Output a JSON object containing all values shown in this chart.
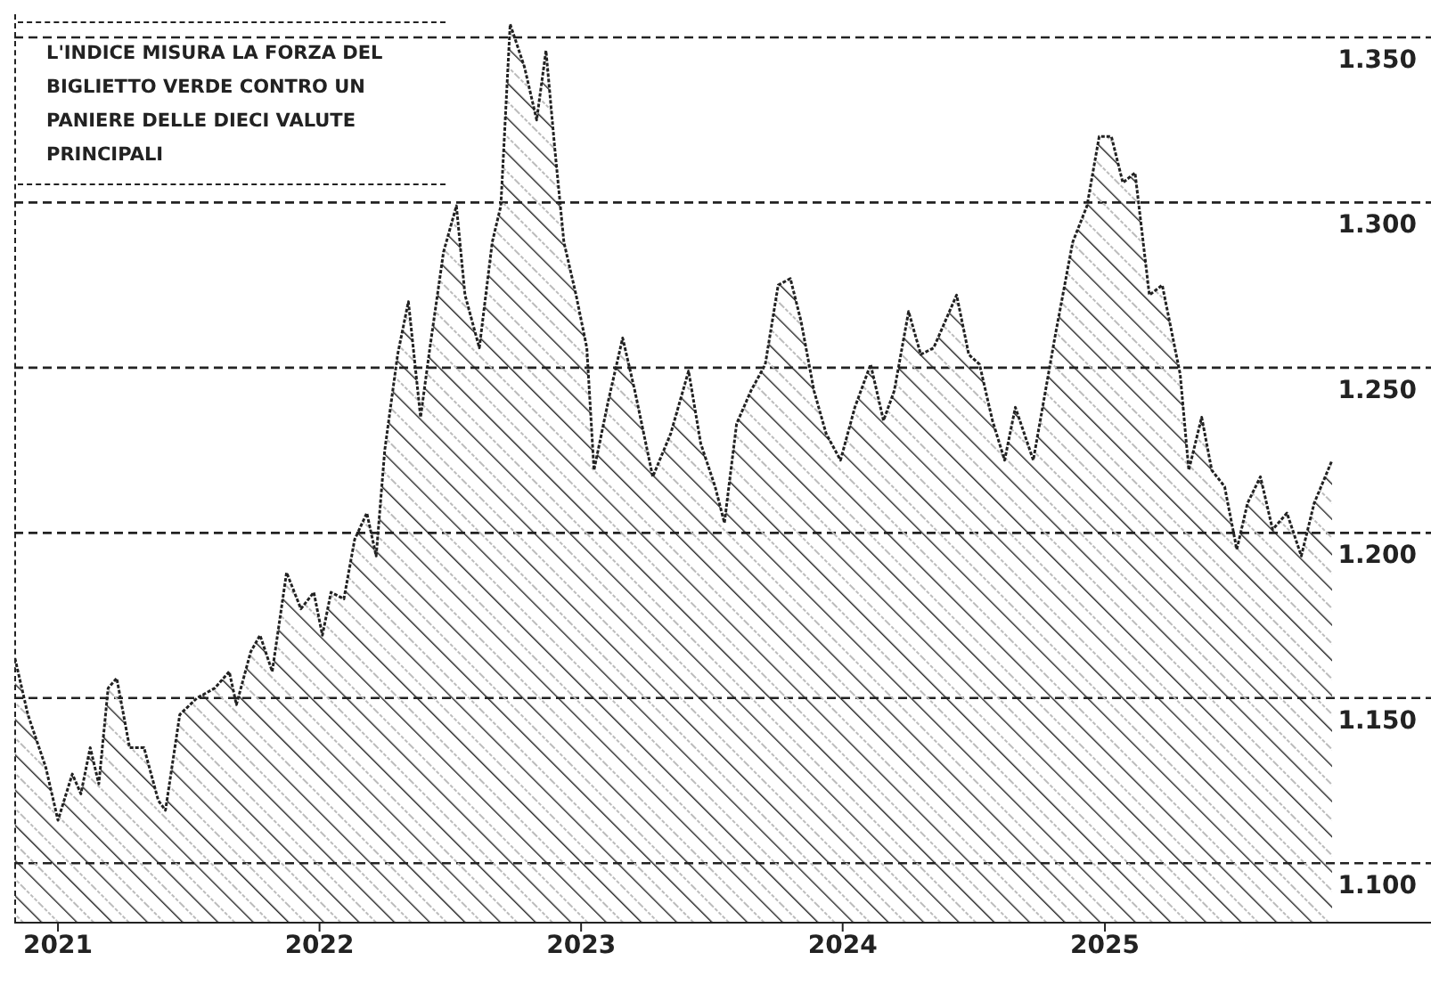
{
  "chart_data": {
    "type": "area",
    "annotations": [
      "L'INDICE MISURA LA FORZA DEL BIGLIETTO VERDE CONTRO UN PANIERE DELLE DIECI VALUTE PRINCIPALI"
    ],
    "x": [
      "2020-11-02",
      "2020-11-20",
      "2020-12-15",
      "2021-01-01",
      "2021-01-21",
      "2021-02-02",
      "2021-02-15",
      "2021-02-27",
      "2021-03-12",
      "2021-03-24",
      "2021-04-11",
      "2021-05-01",
      "2021-05-21",
      "2021-05-31",
      "2021-06-20",
      "2021-07-14",
      "2021-08-08",
      "2021-08-28",
      "2021-09-07",
      "2021-09-27",
      "2021-10-10",
      "2021-10-27",
      "2021-11-16",
      "2021-12-06",
      "2021-12-24",
      "2022-01-05",
      "2022-01-17",
      "2022-02-04",
      "2022-02-19",
      "2022-03-08",
      "2022-03-21",
      "2022-04-02",
      "2022-04-20",
      "2022-05-05",
      "2022-05-22",
      "2022-06-04",
      "2022-06-23",
      "2022-07-11",
      "2022-07-23",
      "2022-08-12",
      "2022-08-30",
      "2022-09-11",
      "2022-09-24",
      "2022-10-14",
      "2022-10-31",
      "2022-11-13",
      "2022-11-25",
      "2022-12-08",
      "2022-12-25",
      "2023-01-09",
      "2023-01-19",
      "2023-02-08",
      "2023-02-28",
      "2023-03-17",
      "2023-04-11",
      "2023-05-06",
      "2023-05-31",
      "2023-06-17",
      "2023-07-07",
      "2023-07-20",
      "2023-08-06",
      "2023-08-26",
      "2023-09-15",
      "2023-10-03",
      "2023-10-20",
      "2023-11-04",
      "2023-11-22",
      "2023-12-09",
      "2023-12-29",
      "2024-01-18",
      "2024-02-09",
      "2024-02-27",
      "2024-03-13",
      "2024-04-02",
      "2024-04-19",
      "2024-05-07",
      "2024-06-08",
      "2024-06-25",
      "2024-07-10",
      "2024-07-28",
      "2024-08-14",
      "2024-08-29",
      "2024-09-23",
      "2024-10-23",
      "2024-11-17",
      "2024-12-07",
      "2024-12-24",
      "2025-01-10",
      "2025-01-26",
      "2025-02-12",
      "2025-03-04",
      "2025-03-22",
      "2025-04-16",
      "2025-04-28",
      "2025-05-16",
      "2025-05-30",
      "2025-06-17",
      "2025-07-04",
      "2025-07-19",
      "2025-08-06",
      "2025-08-23",
      "2025-09-12",
      "2025-10-02",
      "2025-10-20",
      "2025-11-14"
    ],
    "series": [
      {
        "color": "#222222",
        "values": [
          1.162,
          1.145,
          1.129,
          1.113,
          1.127,
          1.121,
          1.135,
          1.124,
          1.153,
          1.156,
          1.135,
          1.135,
          1.119,
          1.116,
          1.145,
          1.15,
          1.153,
          1.158,
          1.148,
          1.164,
          1.169,
          1.158,
          1.188,
          1.177,
          1.182,
          1.169,
          1.182,
          1.18,
          1.198,
          1.206,
          1.193,
          1.225,
          1.254,
          1.27,
          1.235,
          1.256,
          1.285,
          1.299,
          1.272,
          1.256,
          1.288,
          1.299,
          1.354,
          1.341,
          1.325,
          1.346,
          1.317,
          1.288,
          1.272,
          1.256,
          1.219,
          1.24,
          1.259,
          1.243,
          1.217,
          1.23,
          1.249,
          1.227,
          1.214,
          1.203,
          1.233,
          1.243,
          1.251,
          1.275,
          1.277,
          1.264,
          1.243,
          1.23,
          1.222,
          1.238,
          1.251,
          1.234,
          1.243,
          1.267,
          1.254,
          1.256,
          1.272,
          1.254,
          1.251,
          1.234,
          1.222,
          1.238,
          1.222,
          1.259,
          1.288,
          1.299,
          1.32,
          1.32,
          1.306,
          1.309,
          1.272,
          1.275,
          1.248,
          1.219,
          1.235,
          1.219,
          1.214,
          1.195,
          1.209,
          1.217,
          1.201,
          1.206,
          1.193,
          1.209,
          1.222
        ]
      }
    ],
    "xlim": [
      "2020-11-01",
      "2026-04-01"
    ],
    "xticks": [
      "2021",
      "2022",
      "2023",
      "2024",
      "2025"
    ],
    "ylim": [
      1.082,
      1.357
    ],
    "yticks": [
      {
        "value": 1.1,
        "label": "1.100"
      },
      {
        "value": 1.15,
        "label": "1.150"
      },
      {
        "value": 1.2,
        "label": "1.200"
      },
      {
        "value": 1.25,
        "label": "1.250"
      },
      {
        "value": 1.3,
        "label": "1.300"
      },
      {
        "value": 1.35,
        "label": "1.350"
      }
    ],
    "grid": "y",
    "legend": false
  }
}
